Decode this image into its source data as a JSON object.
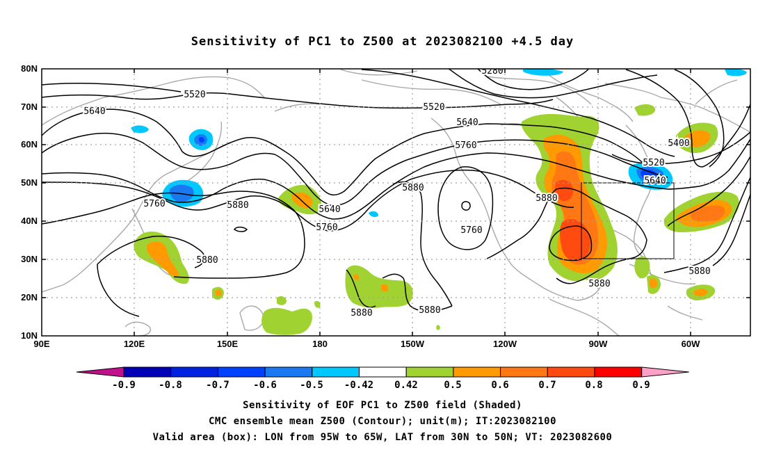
{
  "title": "Sensitivity of PC1 to Z500 at 2023082100 +4.5 day",
  "lat_labels": [
    "80N",
    "70N",
    "60N",
    "50N",
    "40N",
    "30N",
    "20N",
    "10N"
  ],
  "lon_labels": [
    "90E",
    "120E",
    "150E",
    "180",
    "150W",
    "120W",
    "90W",
    "60W"
  ],
  "contour_labels": [
    "5280",
    "5520",
    "5520",
    "5640",
    "5640",
    "5640",
    "5640",
    "5760",
    "5760",
    "5760",
    "5760",
    "5880",
    "5880",
    "5880",
    "5880",
    "5880",
    "5880",
    "5880",
    "5880",
    "5400",
    "5520"
  ],
  "colorbar": {
    "labels": [
      "-0.9",
      "-0.8",
      "-0.7",
      "-0.6",
      "-0.5",
      "-0.42",
      "0.42",
      "0.5",
      "0.6",
      "0.7",
      "0.8",
      "0.9"
    ],
    "colors": {
      "low_triangle": "#c0108c",
      "neg": [
        "#0000b4",
        "#0022e0",
        "#0040ff",
        "#1a78f0",
        "#00c8ff"
      ],
      "zero": "#ffffff",
      "pos": [
        "#a0d232",
        "#ff9a00",
        "#ff7814",
        "#ff4a10",
        "#ff0000"
      ],
      "high_triangle": "#ffa0c8"
    }
  },
  "captions": [
    "Sensitivity of EOF PC1 to Z500 field (Shaded)",
    "CMC ensemble mean Z500 (Contour); unit(m); IT:2023082100",
    "Valid area (box): LON from 95W to 65W, LAT from 30N to 50N; VT: 2023082600"
  ],
  "valid_box": {
    "lon": [
      -95,
      -65
    ],
    "lat": [
      30,
      50
    ]
  }
}
